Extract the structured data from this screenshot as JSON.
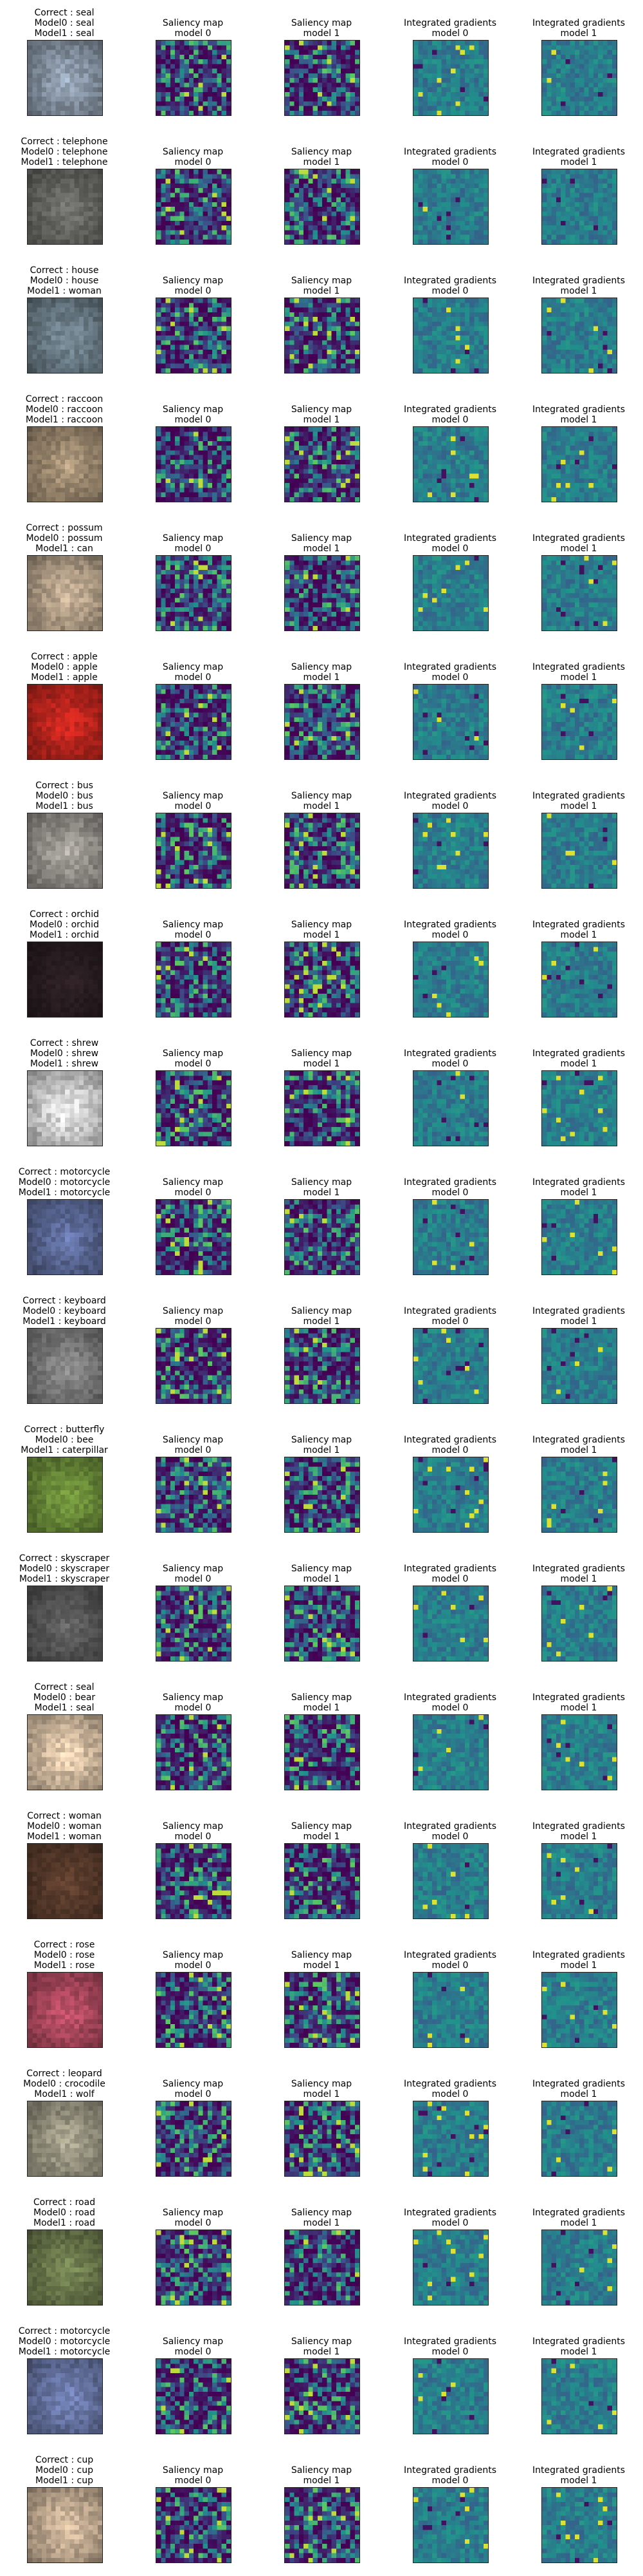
{
  "chart_data": {
    "type": "heatmap",
    "columns": [
      {
        "key": "input",
        "title": null
      },
      {
        "key": "sal0",
        "title": "Saliency map\nmodel 0"
      },
      {
        "key": "sal1",
        "title": "Saliency map\nmodel 1"
      },
      {
        "key": "ig0",
        "title": "Integrated gradients\nmodel 0"
      },
      {
        "key": "ig1",
        "title": "Integrated gradients\nmodel 1"
      }
    ],
    "colormap": [
      "#440154",
      "#3b528b",
      "#21918c",
      "#5ec962",
      "#fde725"
    ],
    "rows": [
      {
        "correct": "seal",
        "model0": "seal",
        "model1": "seal",
        "image_color": "#8a98a8"
      },
      {
        "correct": "telephone",
        "model0": "telephone",
        "model1": "telephone",
        "image_color": "#6a6a66"
      },
      {
        "correct": "house",
        "model0": "house",
        "model1": "woman",
        "image_color": "#6d7f8a"
      },
      {
        "correct": "raccoon",
        "model0": "raccoon",
        "model1": "raccoon",
        "image_color": "#a08c72"
      },
      {
        "correct": "possum",
        "model0": "possum",
        "model1": "can",
        "image_color": "#b8a48c"
      },
      {
        "correct": "apple",
        "model0": "apple",
        "model1": "apple",
        "image_color": "#c0261e"
      },
      {
        "correct": "bus",
        "model0": "bus",
        "model1": "bus",
        "image_color": "#9a9690"
      },
      {
        "correct": "orchid",
        "model0": "orchid",
        "model1": "orchid",
        "image_color": "#2a1e22"
      },
      {
        "correct": "shrew",
        "model0": "shrew",
        "model1": "shrew",
        "image_color": "#d4d4d4"
      },
      {
        "correct": "motorcycle",
        "model0": "motorcycle",
        "model1": "motorcycle",
        "image_color": "#5c6a98"
      },
      {
        "correct": "keyboard",
        "model0": "keyboard",
        "model1": "keyboard",
        "image_color": "#7e7e7e"
      },
      {
        "correct": "butterfly",
        "model0": "bee",
        "model1": "caterpillar",
        "image_color": "#6c8e3a"
      },
      {
        "correct": "skyscraper",
        "model0": "skyscraper",
        "model1": "skyscraper",
        "image_color": "#5a5a5a"
      },
      {
        "correct": "seal",
        "model0": "bear",
        "model1": "seal",
        "image_color": "#d8c0a4"
      },
      {
        "correct": "woman",
        "model0": "woman",
        "model1": "woman",
        "image_color": "#5a3c2c"
      },
      {
        "correct": "rose",
        "model0": "rose",
        "model1": "rose",
        "image_color": "#b04a60"
      },
      {
        "correct": "leopard",
        "model0": "crocodile",
        "model1": "wolf",
        "image_color": "#9c9884"
      },
      {
        "correct": "road",
        "model0": "road",
        "model1": "road",
        "image_color": "#6e7c4e"
      },
      {
        "correct": "motorcycle",
        "model0": "motorcycle",
        "model1": "motorcycle",
        "image_color": "#6a78a8"
      },
      {
        "correct": "cup",
        "model0": "cup",
        "model1": "cup",
        "image_color": "#c8b096"
      }
    ]
  }
}
